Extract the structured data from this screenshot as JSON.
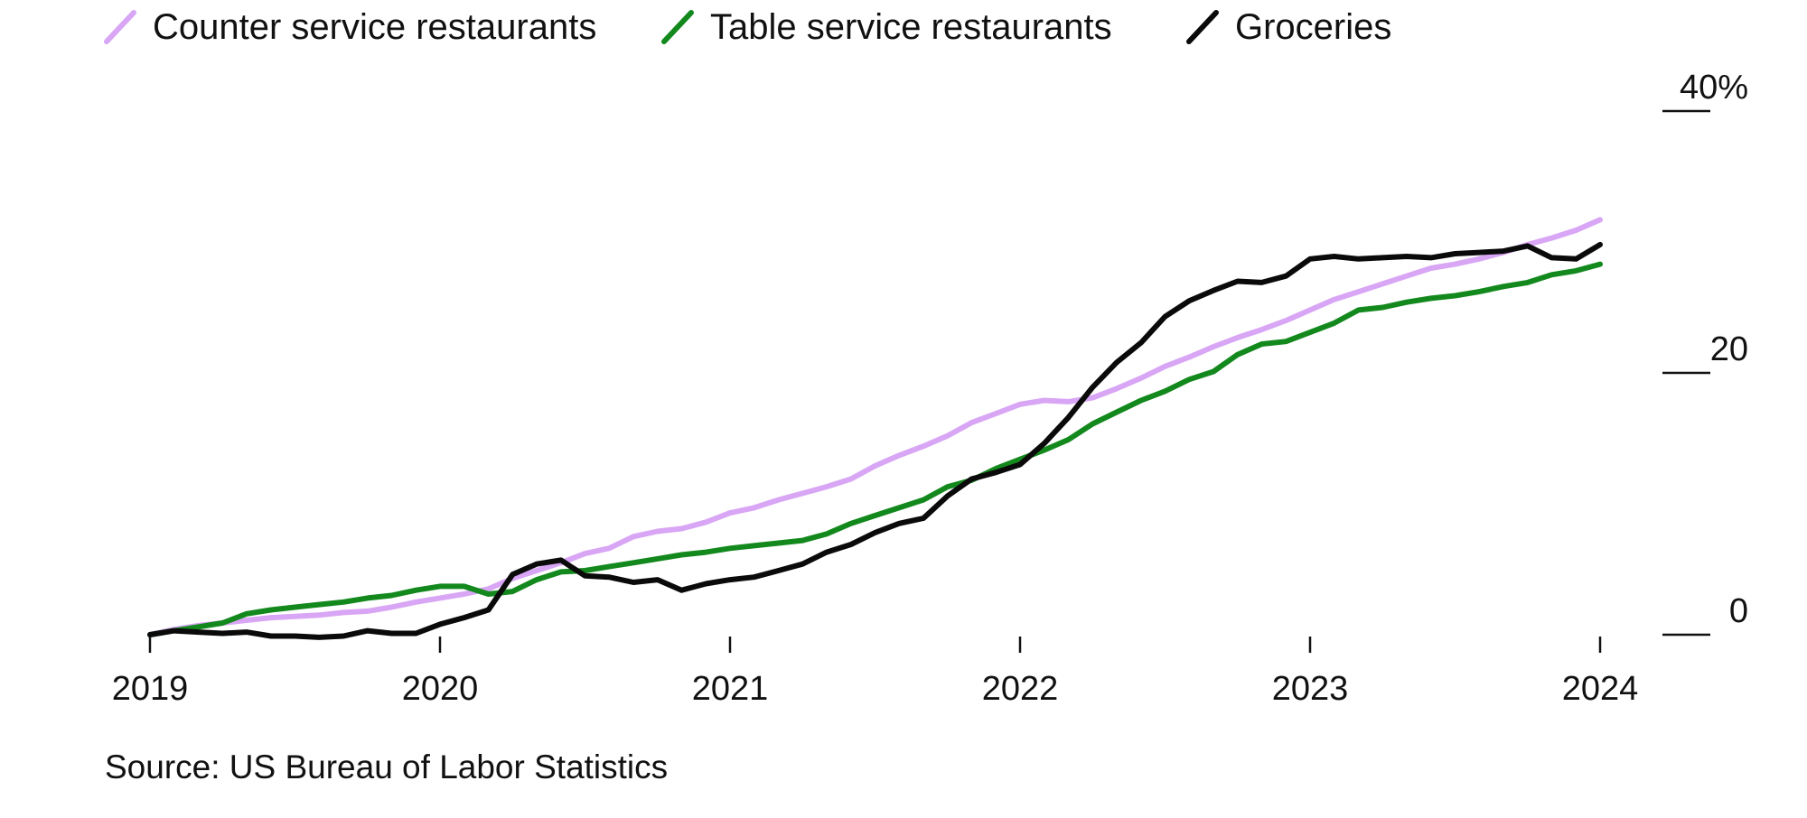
{
  "chart_data": {
    "type": "line",
    "x_ticks": [
      "2019",
      "2020",
      "2021",
      "2022",
      "2023",
      "2024"
    ],
    "y_ticks": [
      {
        "value": 0,
        "label": "0"
      },
      {
        "value": 20,
        "label": "20"
      },
      {
        "value": 40,
        "label": "40%"
      }
    ],
    "ylim": [
      0,
      40
    ],
    "xlim": [
      2019.0,
      2024.0
    ],
    "grid": false,
    "legend_position": "top-left",
    "source": "Source: US Bureau of Labor Statistics",
    "series": [
      {
        "name": "Counter service restaurants",
        "color": "#d8a6f5",
        "x": [
          2019.0,
          2019.083,
          2019.167,
          2019.25,
          2019.333,
          2019.417,
          2019.5,
          2019.583,
          2019.667,
          2019.75,
          2019.833,
          2019.917,
          2020.0,
          2020.083,
          2020.167,
          2020.25,
          2020.333,
          2020.417,
          2020.5,
          2020.583,
          2020.667,
          2020.75,
          2020.833,
          2020.917,
          2021.0,
          2021.083,
          2021.167,
          2021.25,
          2021.333,
          2021.417,
          2021.5,
          2021.583,
          2021.667,
          2021.75,
          2021.833,
          2021.917,
          2022.0,
          2022.083,
          2022.167,
          2022.25,
          2022.333,
          2022.417,
          2022.5,
          2022.583,
          2022.667,
          2022.75,
          2022.833,
          2022.917,
          2023.0,
          2023.083,
          2023.167,
          2023.25,
          2023.333,
          2023.417,
          2023.5,
          2023.583,
          2023.667,
          2023.75,
          2023.833,
          2023.917,
          2024.0
        ],
        "values": [
          0.0,
          0.4,
          0.7,
          0.9,
          1.1,
          1.3,
          1.4,
          1.5,
          1.7,
          1.8,
          2.1,
          2.5,
          2.8,
          3.1,
          3.5,
          4.3,
          4.9,
          5.5,
          6.2,
          6.6,
          7.5,
          7.9,
          8.1,
          8.6,
          9.3,
          9.7,
          10.3,
          10.8,
          11.3,
          11.9,
          12.9,
          13.7,
          14.4,
          15.2,
          16.2,
          16.9,
          17.6,
          17.9,
          17.8,
          18.1,
          18.8,
          19.6,
          20.5,
          21.2,
          22.0,
          22.7,
          23.3,
          24.0,
          24.8,
          25.6,
          26.2,
          26.8,
          27.4,
          28.0,
          28.3,
          28.7,
          29.2,
          29.8,
          30.3,
          30.9,
          31.7
        ]
      },
      {
        "name": "Table service restaurants",
        "color": "#13891d",
        "x": [
          2019.0,
          2019.083,
          2019.167,
          2019.25,
          2019.333,
          2019.417,
          2019.5,
          2019.583,
          2019.667,
          2019.75,
          2019.833,
          2019.917,
          2020.0,
          2020.083,
          2020.167,
          2020.25,
          2020.333,
          2020.417,
          2020.5,
          2020.583,
          2020.667,
          2020.75,
          2020.833,
          2020.917,
          2021.0,
          2021.083,
          2021.167,
          2021.25,
          2021.333,
          2021.417,
          2021.5,
          2021.583,
          2021.667,
          2021.75,
          2021.833,
          2021.917,
          2022.0,
          2022.083,
          2022.167,
          2022.25,
          2022.333,
          2022.417,
          2022.5,
          2022.583,
          2022.667,
          2022.75,
          2022.833,
          2022.917,
          2023.0,
          2023.083,
          2023.167,
          2023.25,
          2023.333,
          2023.417,
          2023.5,
          2023.583,
          2023.667,
          2023.75,
          2023.833,
          2023.917,
          2024.0
        ],
        "values": [
          0.0,
          0.3,
          0.6,
          0.9,
          1.6,
          1.9,
          2.1,
          2.3,
          2.5,
          2.8,
          3.0,
          3.4,
          3.7,
          3.7,
          3.1,
          3.3,
          4.2,
          4.8,
          4.9,
          5.2,
          5.5,
          5.8,
          6.1,
          6.3,
          6.6,
          6.8,
          7.0,
          7.2,
          7.7,
          8.5,
          9.1,
          9.7,
          10.3,
          11.3,
          11.8,
          12.7,
          13.4,
          14.1,
          14.9,
          16.1,
          17.0,
          17.9,
          18.6,
          19.5,
          20.1,
          21.4,
          22.2,
          22.4,
          23.1,
          23.8,
          24.8,
          25.0,
          25.4,
          25.7,
          25.9,
          26.2,
          26.6,
          26.9,
          27.5,
          27.8,
          28.3
        ]
      },
      {
        "name": "Groceries",
        "color": "#0a0a0a",
        "x": [
          2019.0,
          2019.083,
          2019.167,
          2019.25,
          2019.333,
          2019.417,
          2019.5,
          2019.583,
          2019.667,
          2019.75,
          2019.833,
          2019.917,
          2020.0,
          2020.083,
          2020.167,
          2020.25,
          2020.333,
          2020.417,
          2020.5,
          2020.583,
          2020.667,
          2020.75,
          2020.833,
          2020.917,
          2021.0,
          2021.083,
          2021.167,
          2021.25,
          2021.333,
          2021.417,
          2021.5,
          2021.583,
          2021.667,
          2021.75,
          2021.833,
          2021.917,
          2022.0,
          2022.083,
          2022.167,
          2022.25,
          2022.333,
          2022.417,
          2022.5,
          2022.583,
          2022.667,
          2022.75,
          2022.833,
          2022.917,
          2023.0,
          2023.083,
          2023.167,
          2023.25,
          2023.333,
          2023.417,
          2023.5,
          2023.583,
          2023.667,
          2023.75,
          2023.833,
          2023.917,
          2024.0
        ],
        "values": [
          0.0,
          0.3,
          0.2,
          0.1,
          0.2,
          -0.1,
          -0.1,
          -0.2,
          -0.1,
          0.3,
          0.1,
          0.1,
          0.8,
          1.3,
          1.9,
          4.6,
          5.4,
          5.7,
          4.5,
          4.4,
          4.0,
          4.2,
          3.4,
          3.9,
          4.2,
          4.4,
          4.9,
          5.4,
          6.3,
          6.9,
          7.8,
          8.5,
          8.9,
          10.6,
          11.9,
          12.4,
          13.0,
          14.6,
          16.6,
          18.9,
          20.8,
          22.3,
          24.3,
          25.5,
          26.3,
          27.0,
          26.9,
          27.4,
          28.7,
          28.9,
          28.7,
          28.8,
          28.9,
          28.8,
          29.1,
          29.2,
          29.3,
          29.7,
          28.8,
          28.7,
          29.8
        ]
      }
    ]
  }
}
